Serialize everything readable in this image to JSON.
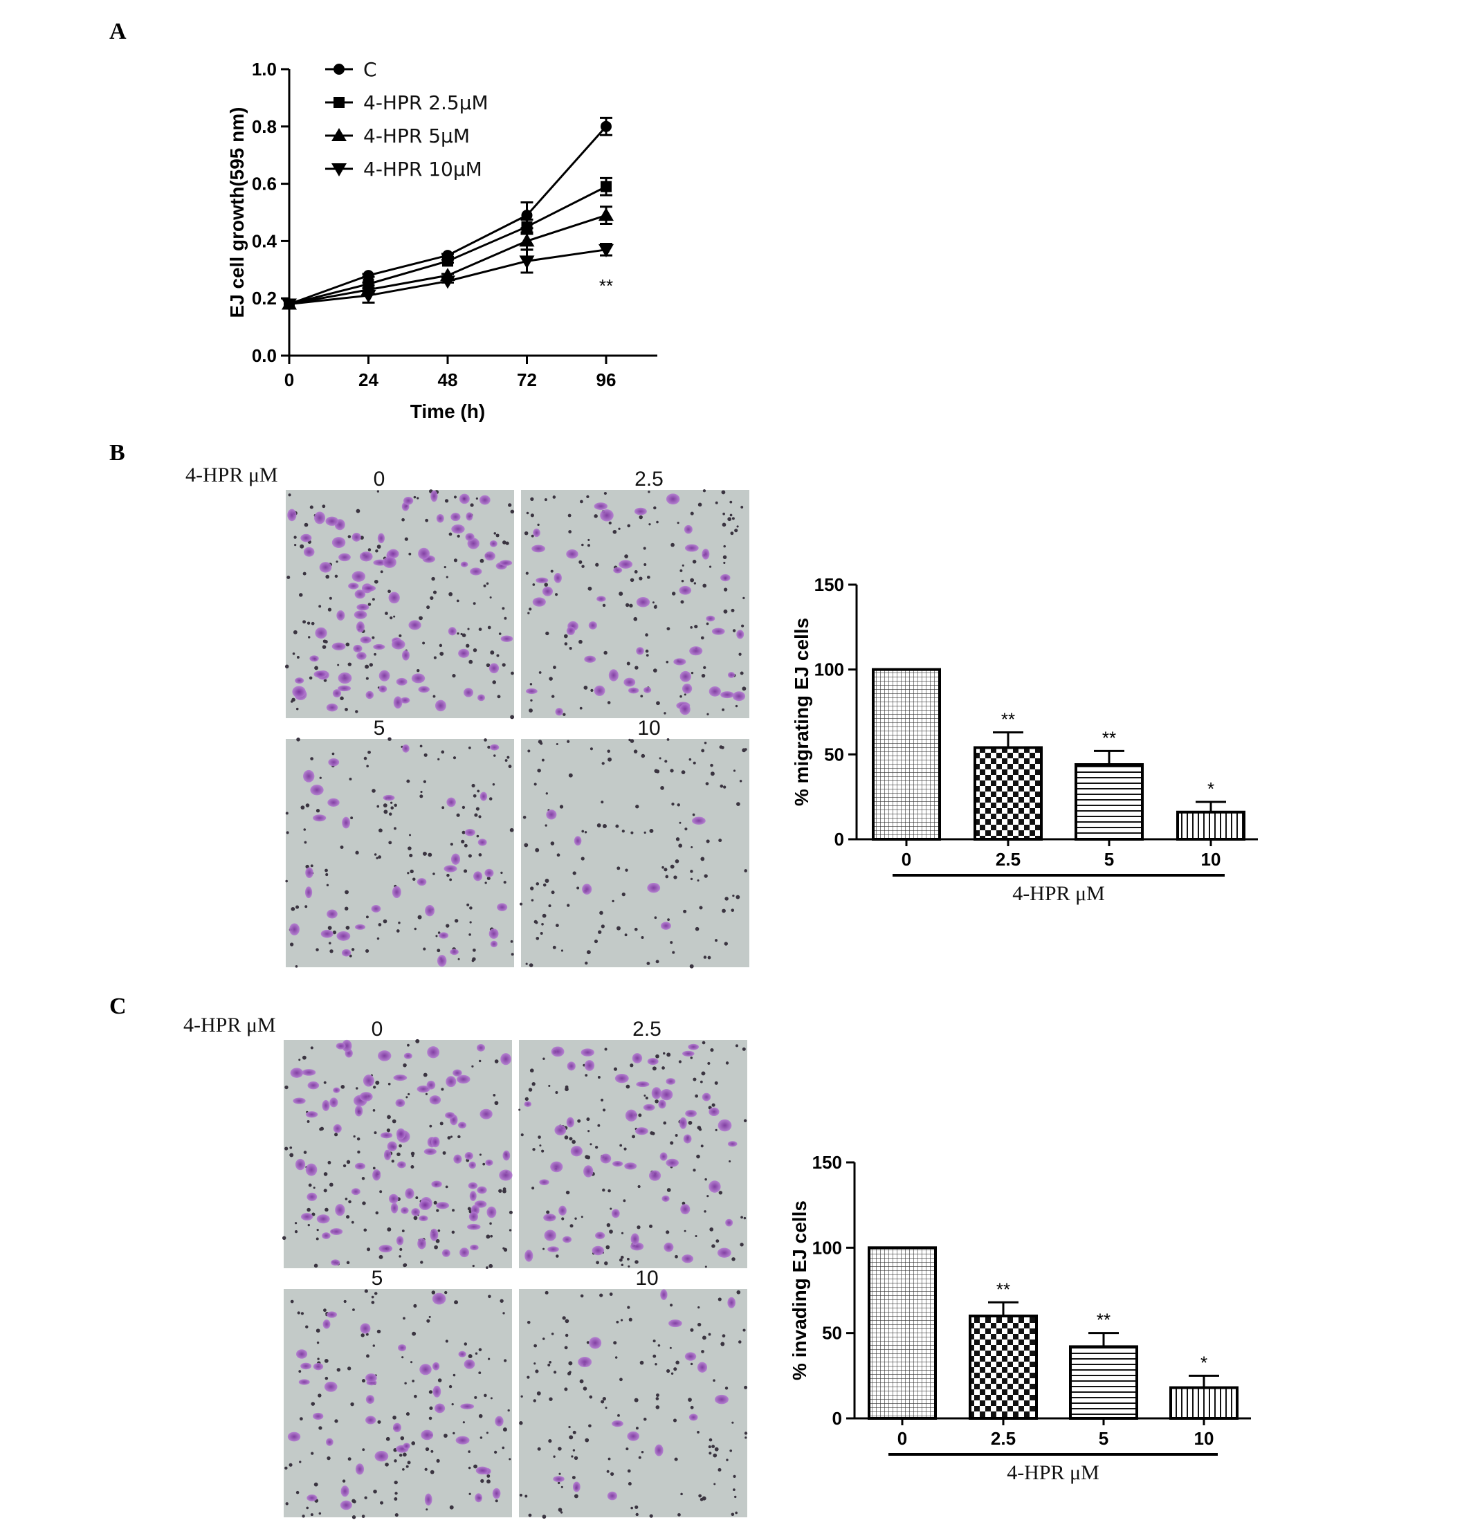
{
  "panels": {
    "A": "A",
    "B": "B",
    "C": "C"
  },
  "chart_data": [
    {
      "type": "line",
      "panel": "A",
      "title": "",
      "xlabel": "Time (h)",
      "ylabel": "EJ cell growth(595 nm)",
      "x": [
        0,
        24,
        48,
        72,
        96
      ],
      "xticks": [
        "0",
        "24",
        "48",
        "72",
        "96"
      ],
      "yticks": [
        "0.0",
        "0.2",
        "0.4",
        "0.6",
        "0.8",
        "1.0"
      ],
      "xlim": [
        0,
        96
      ],
      "ylim": [
        0,
        1.0
      ],
      "legend_position": "top-left",
      "series": [
        {
          "name": "C",
          "marker": "circle",
          "values": [
            0.18,
            0.28,
            0.35,
            0.49,
            0.8
          ],
          "errors": [
            0.0,
            0.005,
            0.005,
            0.045,
            0.03
          ]
        },
        {
          "name": "4-HPR 2.5μM",
          "marker": "square",
          "values": [
            0.18,
            0.25,
            0.33,
            0.45,
            0.59
          ],
          "errors": [
            0.0,
            0.005,
            0.005,
            0.025,
            0.03
          ]
        },
        {
          "name": "4-HPR 5μM",
          "marker": "triangle-up",
          "values": [
            0.18,
            0.23,
            0.28,
            0.4,
            0.49
          ],
          "errors": [
            0.0,
            0.005,
            0.005,
            0.03,
            0.03
          ]
        },
        {
          "name": "4-HPR 10μM",
          "marker": "triangle-down",
          "values": [
            0.18,
            0.21,
            0.26,
            0.33,
            0.37
          ],
          "errors": [
            0.0,
            0.025,
            0.005,
            0.04,
            0.02
          ]
        }
      ],
      "annotations": [
        {
          "text": "**",
          "x": 96,
          "y": 0.27
        }
      ]
    },
    {
      "type": "bar",
      "panel": "B",
      "title": "",
      "xlabel": "4-HPR μM",
      "ylabel": "% migrating EJ cells",
      "categories": [
        "0",
        "2.5",
        "5",
        "10"
      ],
      "values": [
        100,
        54,
        44,
        16
      ],
      "errors": [
        0,
        9,
        8,
        6
      ],
      "significance": [
        "",
        "**",
        "**",
        "*"
      ],
      "yticks": [
        "0",
        "50",
        "100",
        "150"
      ],
      "ylim": [
        0,
        150
      ],
      "patterns": [
        "fine-grid",
        "checker",
        "horizontal-lines",
        "vertical-lines"
      ]
    },
    {
      "type": "bar",
      "panel": "C",
      "title": "",
      "xlabel": "4-HPR μM",
      "ylabel": "% invading EJ cells",
      "categories": [
        "0",
        "2.5",
        "5",
        "10"
      ],
      "values": [
        100,
        60,
        42,
        18
      ],
      "errors": [
        0,
        8,
        8,
        7
      ],
      "significance": [
        "",
        "**",
        "**",
        "*"
      ],
      "yticks": [
        "0",
        "50",
        "100",
        "150"
      ],
      "ylim": [
        0,
        150
      ],
      "patterns": [
        "fine-grid",
        "checker",
        "horizontal-lines",
        "vertical-lines"
      ]
    }
  ],
  "micrographs": {
    "B": {
      "row_label": "4-HPR μM",
      "labels": [
        "0",
        "2.5",
        "5",
        "10"
      ]
    },
    "C": {
      "row_label": "4-HPR μM",
      "labels": [
        "0",
        "2.5",
        "5",
        "10"
      ]
    }
  }
}
